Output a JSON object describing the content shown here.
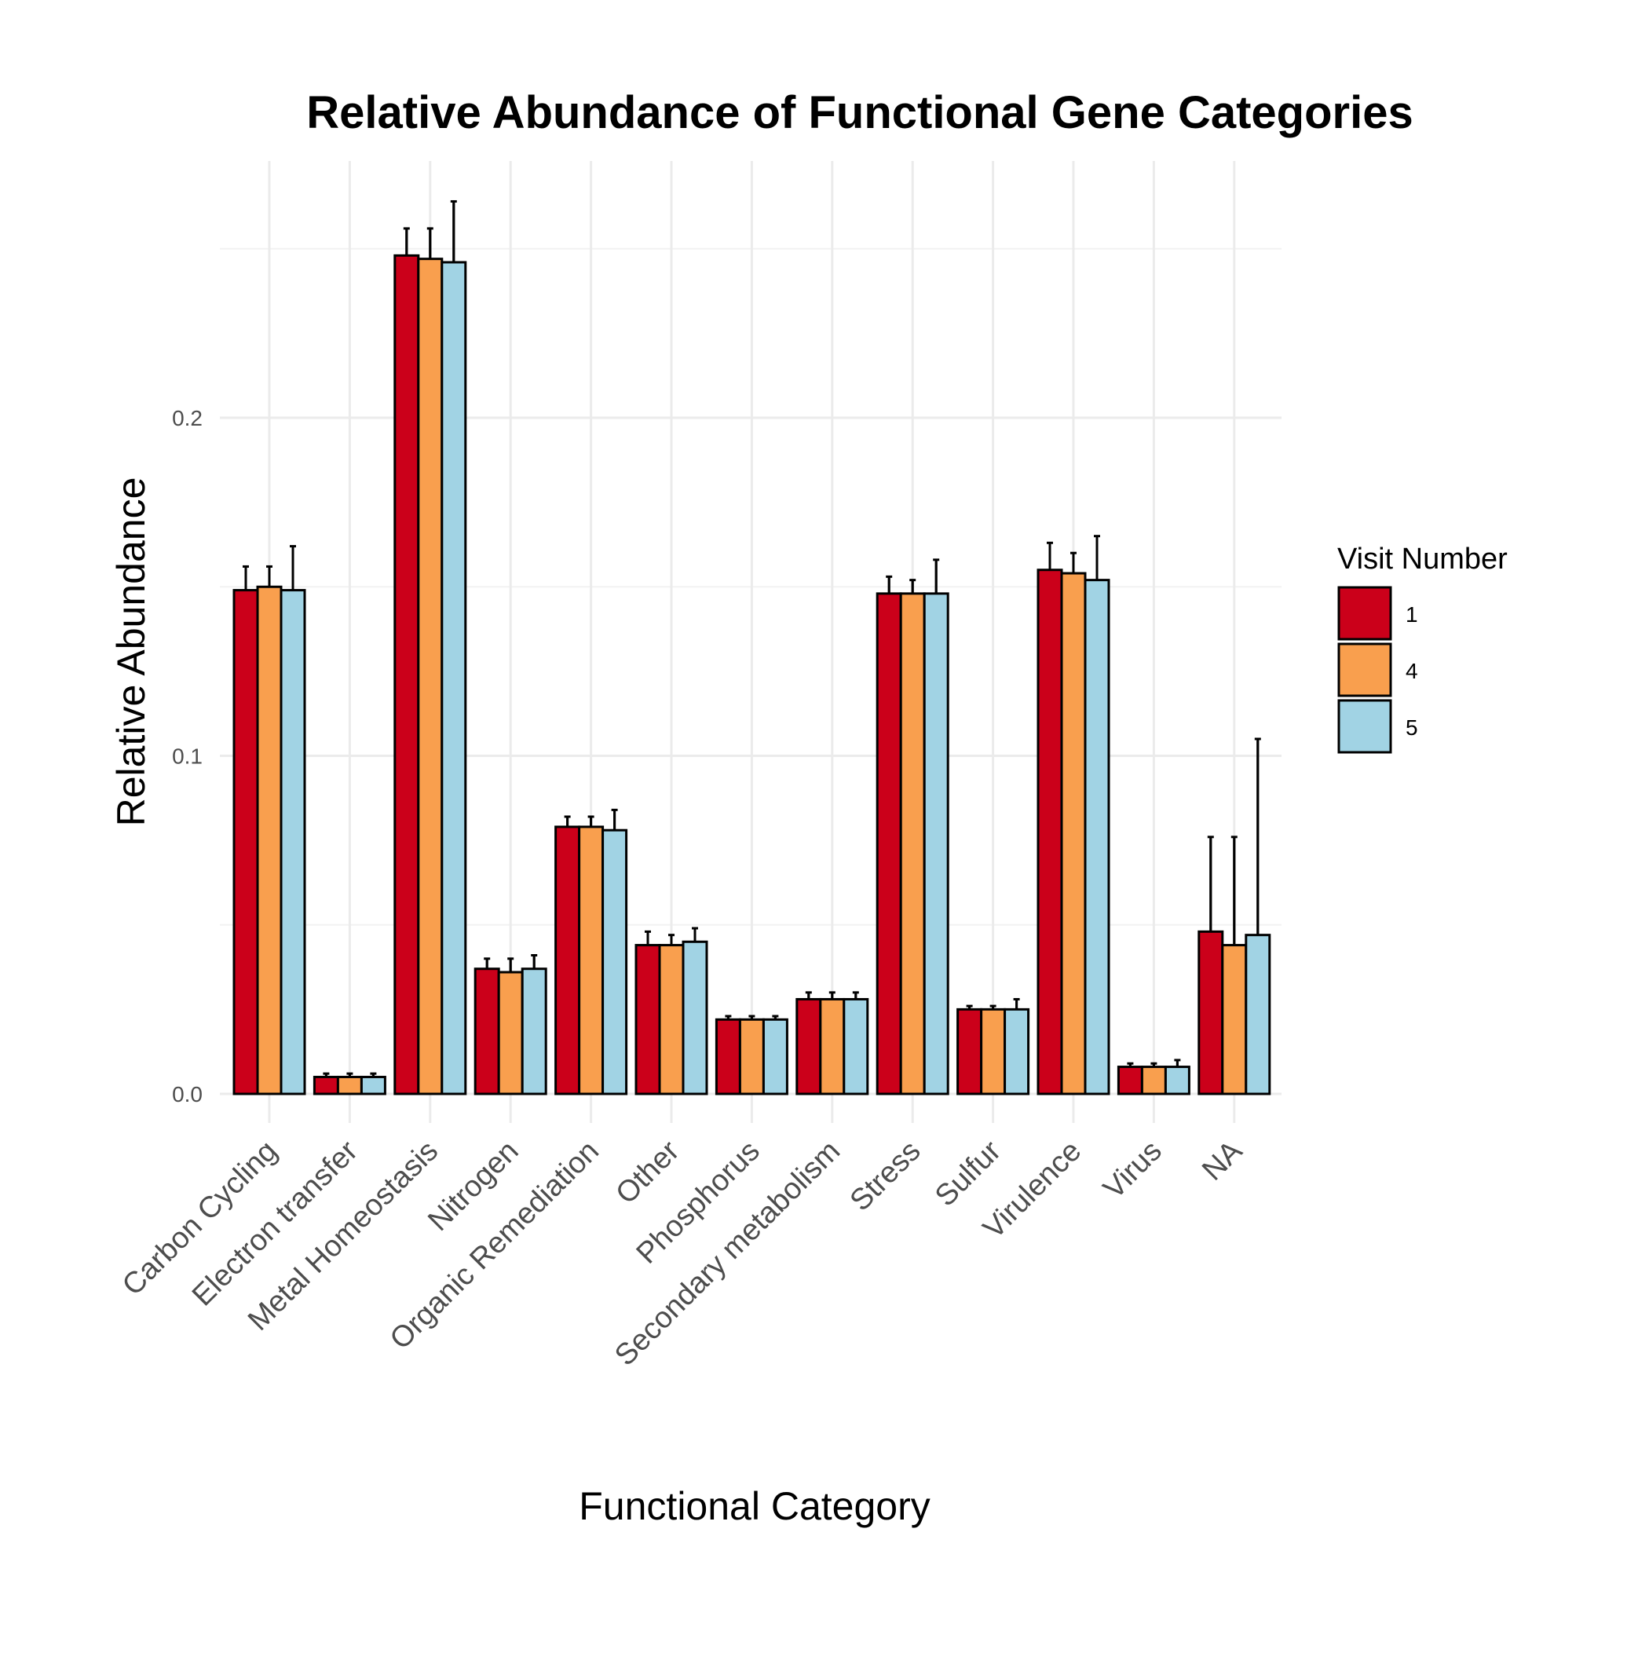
{
  "chart_data": {
    "type": "bar",
    "title": "Relative Abundance of Functional Gene Categories",
    "xlabel": "Functional Category",
    "ylabel": "Relative Abundance",
    "ylim": [
      0,
      0.26
    ],
    "yticks": [
      0.0,
      0.1,
      0.2
    ],
    "ytick_labels": [
      "0.0",
      "0.1",
      "0.2"
    ],
    "grid": true,
    "legend_title": "Visit Number",
    "legend_position": "right",
    "categories": [
      "Carbon Cycling",
      "Electron transfer",
      "Metal Homeostasis",
      "Nitrogen",
      "Organic Remediation",
      "Other",
      "Phosphorus",
      "Secondary metabolism",
      "Stress",
      "Sulfur",
      "Virulence",
      "Virus",
      "NA"
    ],
    "series": [
      {
        "name": "1",
        "color": "#cb001a",
        "values": [
          0.149,
          0.005,
          0.248,
          0.037,
          0.079,
          0.044,
          0.022,
          0.028,
          0.148,
          0.025,
          0.155,
          0.008,
          0.048
        ],
        "err_high": [
          0.156,
          0.006,
          0.256,
          0.04,
          0.082,
          0.048,
          0.023,
          0.03,
          0.153,
          0.026,
          0.163,
          0.009,
          0.076
        ]
      },
      {
        "name": "4",
        "color": "#f99f4e",
        "values": [
          0.15,
          0.005,
          0.247,
          0.036,
          0.079,
          0.044,
          0.022,
          0.028,
          0.148,
          0.025,
          0.154,
          0.008,
          0.044
        ],
        "err_high": [
          0.156,
          0.006,
          0.256,
          0.04,
          0.082,
          0.047,
          0.023,
          0.03,
          0.152,
          0.026,
          0.16,
          0.009,
          0.076
        ]
      },
      {
        "name": "5",
        "color": "#a1d3e4",
        "values": [
          0.149,
          0.005,
          0.246,
          0.037,
          0.078,
          0.045,
          0.022,
          0.028,
          0.148,
          0.025,
          0.152,
          0.008,
          0.047
        ],
        "err_high": [
          0.162,
          0.006,
          0.264,
          0.041,
          0.084,
          0.049,
          0.023,
          0.03,
          0.158,
          0.028,
          0.165,
          0.01,
          0.105
        ]
      }
    ]
  }
}
